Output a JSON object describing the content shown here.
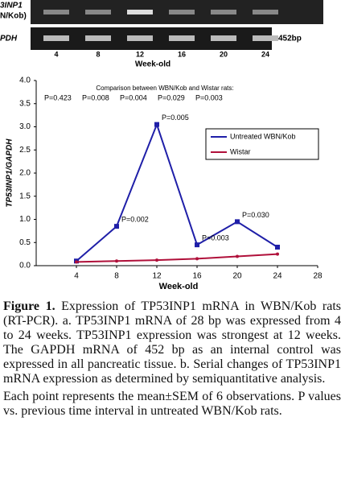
{
  "gel": {
    "row_labels": [
      "3INP1",
      "N/Kob)",
      "PDH"
    ],
    "size_label": "452bp",
    "lanes": [
      "4",
      "8",
      "12",
      "16",
      "20",
      "24"
    ],
    "axis_label": "Week-old"
  },
  "chart_data": {
    "type": "line",
    "annotation_title": "Comparison between WBN/Kob and Wistar rats:",
    "comparison_p_values": [
      "P=0.423",
      "P=0.008",
      "P=0.004",
      "P=0.029",
      "P=0.003"
    ],
    "y_label": "TP53INP1/GAPDH",
    "x_label": "Week-old",
    "x": [
      4,
      8,
      12,
      16,
      20,
      24
    ],
    "series": [
      {
        "name": "Untreated WBN/Kob",
        "color": "#1f1fa8",
        "values": [
          0.1,
          0.85,
          3.05,
          0.45,
          0.95,
          0.4
        ]
      },
      {
        "name": "Wistar",
        "color": "#b0103a",
        "values": [
          0.08,
          0.1,
          0.12,
          0.15,
          0.2,
          0.25
        ]
      }
    ],
    "point_labels": [
      {
        "x": 12,
        "y": 3.05,
        "text": "P=0.005"
      },
      {
        "x": 8,
        "y": 0.85,
        "text": "P=0.002"
      },
      {
        "x": 16,
        "y": 0.45,
        "text": "P=0.003"
      },
      {
        "x": 20,
        "y": 0.95,
        "text": "P=0.030"
      }
    ],
    "xlim": [
      0,
      28
    ],
    "xticks": [
      4,
      8,
      12,
      16,
      20,
      24,
      28
    ],
    "ylim": [
      0,
      4
    ],
    "yticks": [
      {
        "value": 0,
        "label": "0.0"
      },
      0.5,
      {
        "value": 1,
        "label": "1.0"
      },
      1.5,
      {
        "value": 2,
        "label": "2.0"
      },
      2.5,
      {
        "value": 3,
        "label": "3.0"
      },
      3.5,
      {
        "value": 4,
        "label": "4.0"
      }
    ]
  },
  "caption": {
    "label": "Figure 1.",
    "paragraphs": [
      "Expression of TP53INP1 mRNA in WBN/Kob rats (RT-PCR). a. TP53INP1 mRNA of 28 bp was expressed from 4 to 24 weeks. TP53INP1 expression was strongest at 12 weeks. The GAPDH mRNA of 452 bp as an internal control was expressed in all pancreatic tissue. b. Serial changes of TP53INP1 mRNA expression as determined by semiquantitative analysis.",
      "Each point represents the mean±SEM of 6 observations. P values vs. previous time interval in untreated WBN/Kob rats."
    ]
  }
}
